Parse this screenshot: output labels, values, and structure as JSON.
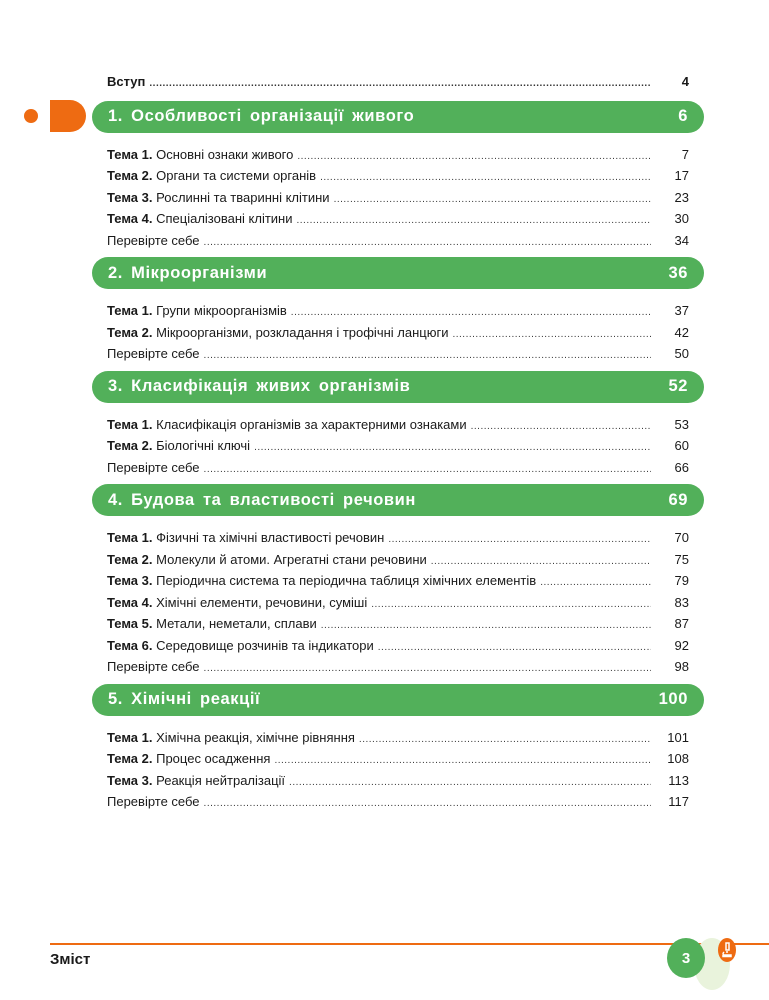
{
  "intro": {
    "label": "Вступ",
    "page": "4"
  },
  "sections": [
    {
      "title": "1. Особливості організації живого",
      "page": "6",
      "items": [
        {
          "prefix": "Тема 1.",
          "label": "Основні ознаки живого",
          "page": "7"
        },
        {
          "prefix": "Тема 2.",
          "label": "Органи та системи органів",
          "page": "17"
        },
        {
          "prefix": "Тема 3.",
          "label": "Рослинні та тваринні клітини",
          "page": "23"
        },
        {
          "prefix": "Тема 4.",
          "label": "Спеціалізовані клітини",
          "page": "30"
        },
        {
          "prefix": "",
          "label": "Перевірте себе",
          "page": "34"
        }
      ]
    },
    {
      "title": "2. Мікроорганізми",
      "page": "36",
      "items": [
        {
          "prefix": "Тема 1.",
          "label": "Групи мікроорганізмів",
          "page": "37"
        },
        {
          "prefix": "Тема 2.",
          "label": "Мікроорганізми, розкладання і трофічні ланцюги",
          "page": "42"
        },
        {
          "prefix": "",
          "label": "Перевірте себе",
          "page": "50"
        }
      ]
    },
    {
      "title": "3. Класифікація живих організмів",
      "page": "52",
      "items": [
        {
          "prefix": "Тема 1.",
          "label": "Класифікація організмів за характерними ознаками",
          "page": "53"
        },
        {
          "prefix": "Тема 2.",
          "label": "Біологічні ключі",
          "page": "60"
        },
        {
          "prefix": "",
          "label": "Перевірте себе",
          "page": "66"
        }
      ]
    },
    {
      "title": "4. Будова та властивості речовин",
      "page": "69",
      "items": [
        {
          "prefix": "Тема 1.",
          "label": "Фізичні та хімічні властивості речовин",
          "page": "70"
        },
        {
          "prefix": "Тема 2.",
          "label": "Молекули й атоми. Агрегатні стани речовини",
          "page": "75"
        },
        {
          "prefix": "Тема 3.",
          "label": "Періодична система та періодична таблиця хімічних елементів",
          "page": "79"
        },
        {
          "prefix": "Тема 4.",
          "label": "Хімічні елементи, речовини, суміші",
          "page": "83"
        },
        {
          "prefix": "Тема 5.",
          "label": "Метали, неметали, сплави",
          "page": "87"
        },
        {
          "prefix": "Тема 6.",
          "label": "Середовище розчинів та індикатори",
          "page": "92"
        },
        {
          "prefix": "",
          "label": "Перевірте себе",
          "page": "98"
        }
      ]
    },
    {
      "title": "5. Хімічні реакції",
      "page": "100",
      "items": [
        {
          "prefix": "Тема 1.",
          "label": "Хімічна реакція, хімічне рівняння",
          "page": "101"
        },
        {
          "prefix": "Тема 2.",
          "label": "Процес осадження",
          "page": "108"
        },
        {
          "prefix": "Тема 3.",
          "label": "Реакція нейтралізації",
          "page": "113"
        },
        {
          "prefix": "",
          "label": "Перевірте себе",
          "page": "117"
        }
      ]
    }
  ],
  "footer": {
    "title": "Зміст",
    "page_number": "3",
    "icon": "microscope-icon"
  },
  "colors": {
    "green": "#52b05a",
    "orange": "#ee6b12"
  }
}
